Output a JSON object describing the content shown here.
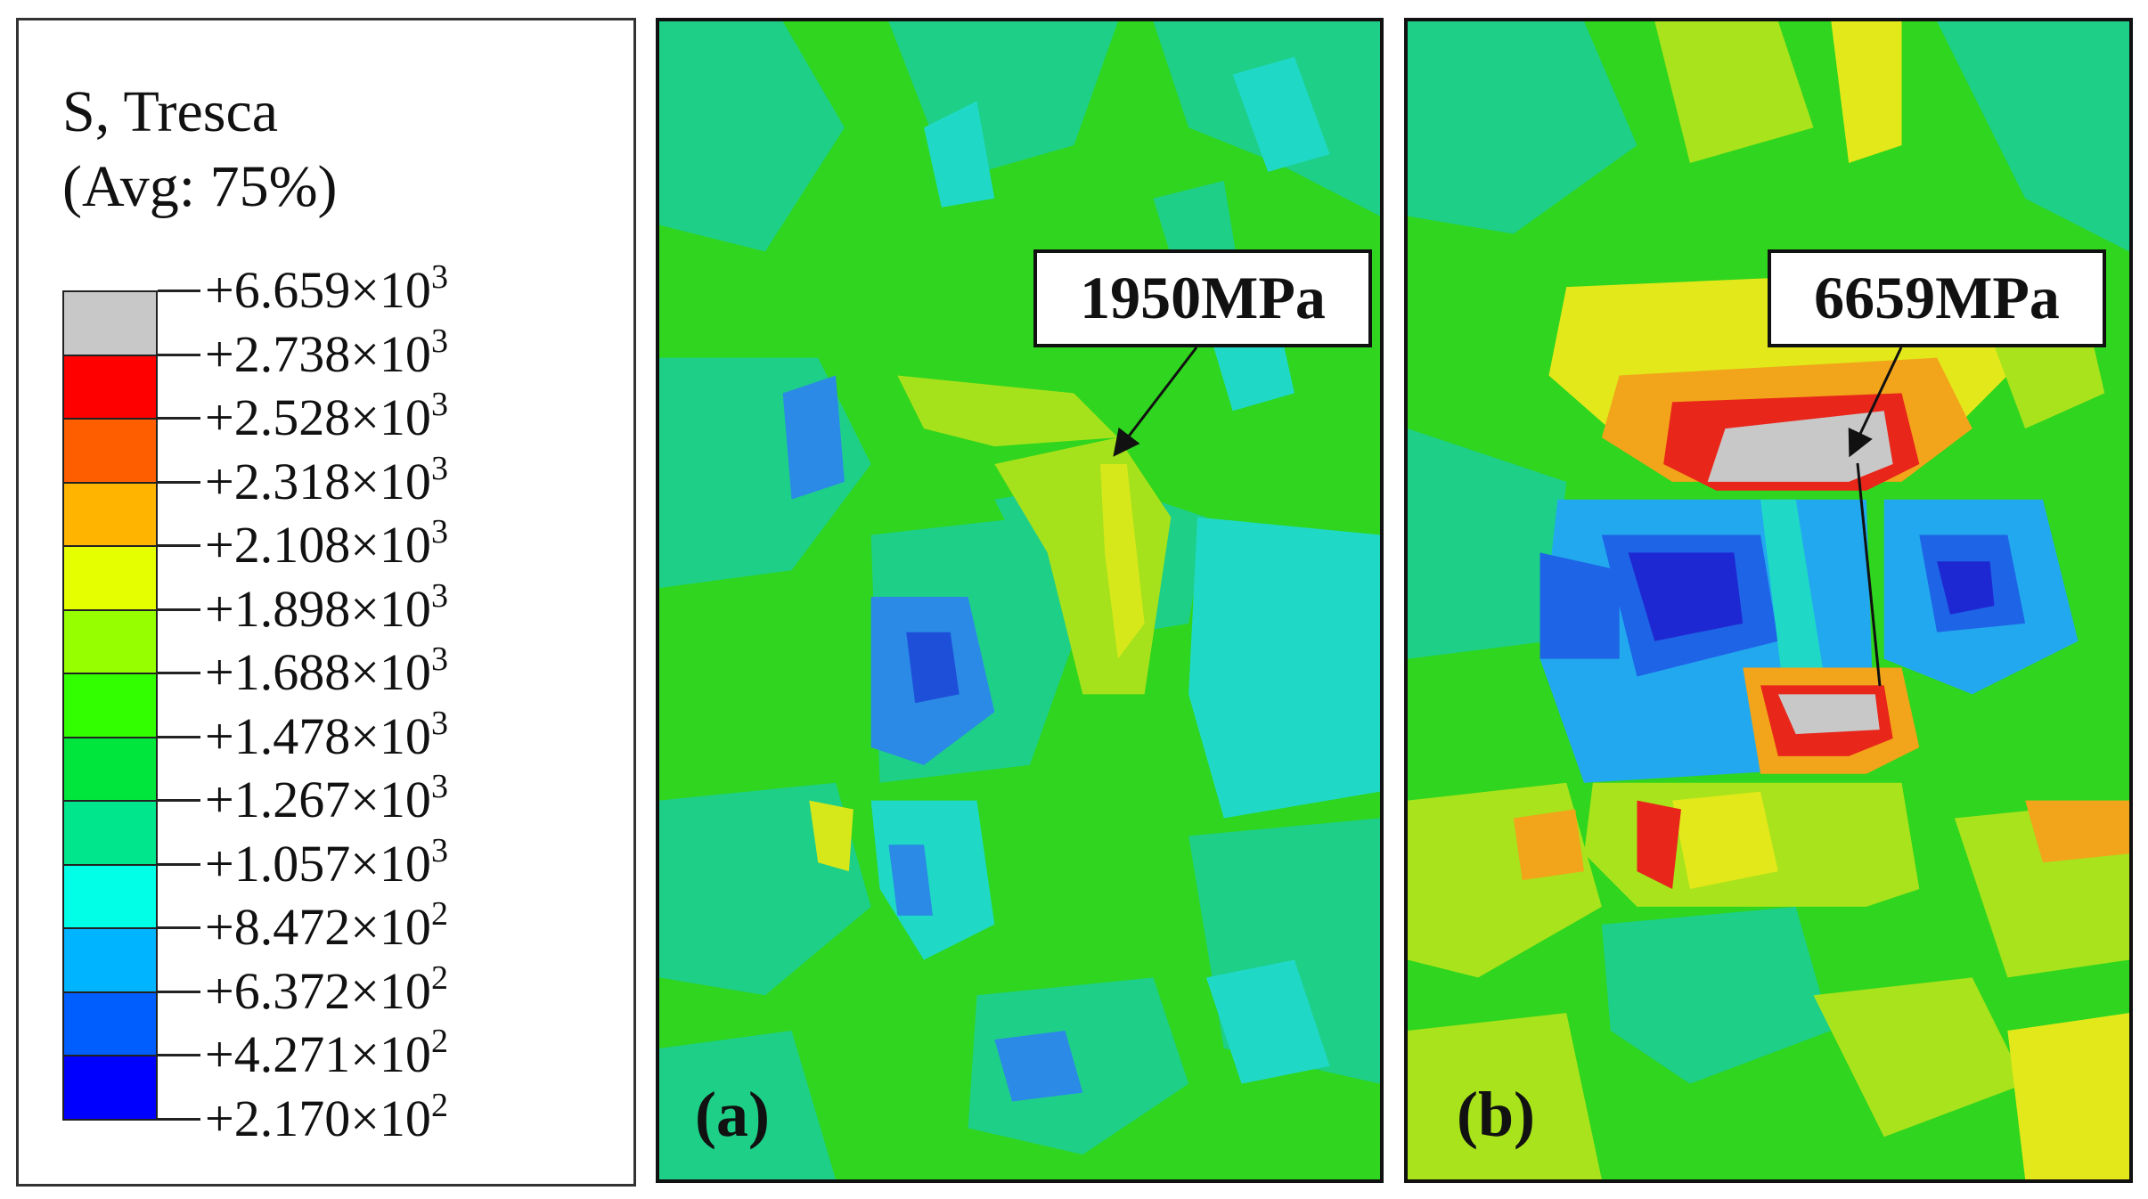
{
  "legend": {
    "title_line1": "S, Tresca",
    "title_line2": "(Avg: 75%)",
    "ticks": [
      {
        "mant": "+6.659",
        "times": "×10",
        "exp": "3"
      },
      {
        "mant": "+2.738",
        "times": "×10",
        "exp": "3"
      },
      {
        "mant": "+2.528",
        "times": "×10",
        "exp": "3"
      },
      {
        "mant": "+2.318",
        "times": "×10",
        "exp": "3"
      },
      {
        "mant": "+2.108",
        "times": "×10",
        "exp": "3"
      },
      {
        "mant": "+1.898",
        "times": "×10",
        "exp": "3"
      },
      {
        "mant": "+1.688",
        "times": "×10",
        "exp": "3"
      },
      {
        "mant": "+1.478",
        "times": "×10",
        "exp": "3"
      },
      {
        "mant": "+1.267",
        "times": "×10",
        "exp": "3"
      },
      {
        "mant": "+1.057",
        "times": "×10",
        "exp": "3"
      },
      {
        "mant": "+8.472",
        "times": "×10",
        "exp": "2"
      },
      {
        "mant": "+6.372",
        "times": "×10",
        "exp": "2"
      },
      {
        "mant": "+4.271",
        "times": "×10",
        "exp": "2"
      },
      {
        "mant": "+2.170",
        "times": "×10",
        "exp": "2"
      }
    ],
    "colors": [
      "#c8c8c8",
      "#ff0000",
      "#ff5e00",
      "#ffb400",
      "#e6ff00",
      "#96ff00",
      "#32ff00",
      "#00e63c",
      "#00e68c",
      "#00ffe6",
      "#00b4ff",
      "#005eff",
      "#0000ff"
    ]
  },
  "panel_a": {
    "label": "(a)",
    "callout": "1950MPa",
    "colors": {
      "base": "#2fd51e",
      "teal": "#1ecf88",
      "cyan": "#1fd9c6",
      "blue": "#2a8ae6",
      "dblue": "#1e4fd8",
      "yellowgreen": "#a5e21b",
      "yellow": "#d7e81a"
    }
  },
  "panel_b": {
    "label": "(b)",
    "callout": "6659MPa",
    "colors": {
      "base": "#2fd51e",
      "yellowgreen": "#a8e31c",
      "yellow": "#e2e81a",
      "orange": "#f2a41a",
      "red": "#e8261a",
      "gray": "#c8c8c8",
      "teal": "#1ecf88",
      "cyan": "#1fd9c6",
      "lblue": "#22a8ee",
      "blue": "#1e64e6",
      "dblue": "#1e28d2"
    }
  }
}
